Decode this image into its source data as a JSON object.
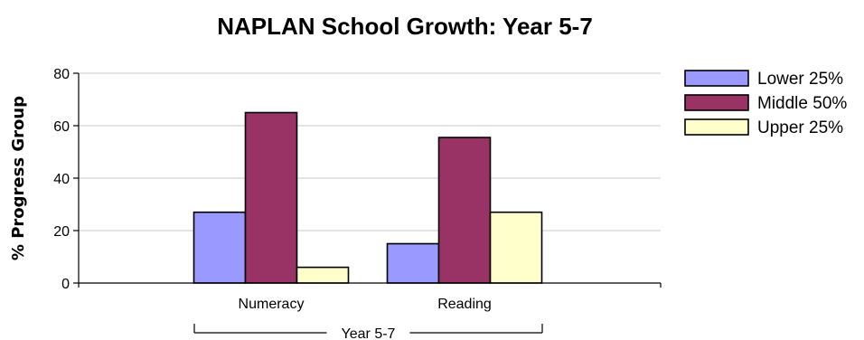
{
  "chart_data": {
    "type": "bar",
    "title": "NAPLAN School Growth: Year 5-7",
    "xlabel": "",
    "ylabel": "% Progress Group",
    "ylim": [
      0,
      80
    ],
    "yticks": [
      0,
      20,
      40,
      60,
      80
    ],
    "categories": [
      "Numeracy",
      "Reading"
    ],
    "group_label": "Year 5-7",
    "grid": true,
    "legend_position": "top-right",
    "series": [
      {
        "name": "Lower 25%",
        "color": "#9999ff",
        "values": [
          27,
          15
        ]
      },
      {
        "name": "Middle 50%",
        "color": "#993366",
        "values": [
          65,
          55.5
        ]
      },
      {
        "name": "Upper 25%",
        "color": "#ffffcc",
        "values": [
          6,
          27
        ]
      }
    ]
  }
}
